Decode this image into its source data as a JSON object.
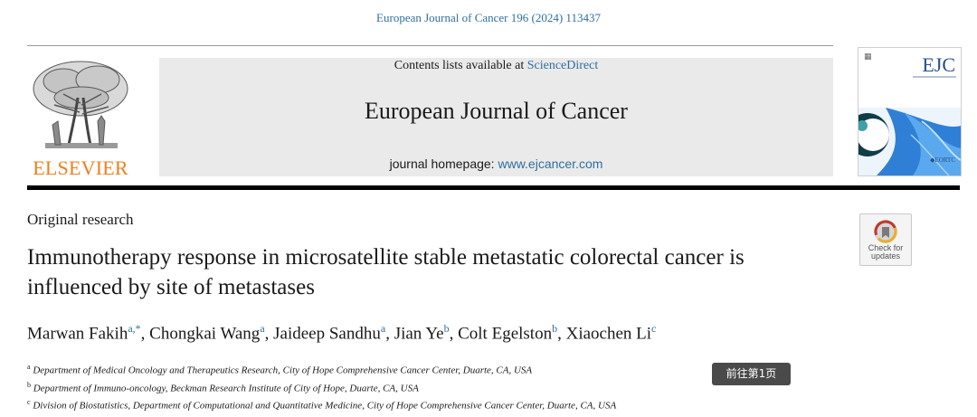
{
  "header": {
    "citation": "European Journal of Cancer 196 (2024) 113437"
  },
  "publisher": {
    "logo_text": "ELSEVIER",
    "logo_color": "#f07f1c"
  },
  "banner": {
    "contents_prefix": "Contents lists available at ",
    "contents_link": "ScienceDirect",
    "journal_title": "European Journal of Cancer",
    "homepage_prefix": "journal homepage: ",
    "homepage_link": "www.ejcancer.com",
    "link_color": "#2f6f9f"
  },
  "cover": {
    "title": "EJC"
  },
  "article": {
    "type": "Original research",
    "title": "Immunotherapy response in microsatellite stable metastatic colorectal cancer is influenced by site of metastases"
  },
  "crossmark": {
    "line1": "Check for",
    "line2": "updates",
    "icon": "crossmark-icon"
  },
  "authors": [
    {
      "name": "Marwan Fakih",
      "sup": "a,*",
      "sep": ", "
    },
    {
      "name": "Chongkai Wang",
      "sup": "a",
      "sep": ", "
    },
    {
      "name": "Jaideep Sandhu",
      "sup": "a",
      "sep": ", "
    },
    {
      "name": "Jian Ye",
      "sup": "b",
      "sep": ", "
    },
    {
      "name": "Colt Egelston",
      "sup": "b",
      "sep": ", "
    },
    {
      "name": "Xiaochen Li",
      "sup": "c",
      "sep": ""
    }
  ],
  "affiliations": [
    {
      "sup": "a",
      "text": "Department of Medical Oncology and Therapeutics Research, City of Hope Comprehensive Cancer Center, Duarte, CA, USA"
    },
    {
      "sup": "b",
      "text": "Department of Immuno-oncology, Beckman Research Institute of City of Hope, Duarte, CA, USA"
    },
    {
      "sup": "c",
      "text": "Division of Biostatistics, Department of Computational and Quantitative Medicine, City of Hope Comprehensive Cancer Center, Duarte, CA, USA"
    }
  ],
  "tooltip": {
    "text": "前往第1页"
  }
}
